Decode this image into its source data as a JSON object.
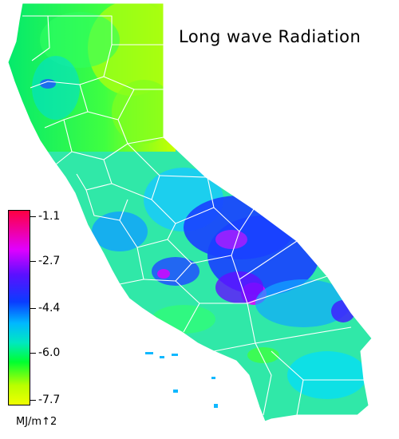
{
  "map": {
    "title": "Long wave Radiation",
    "region": "California",
    "unit": "MJ/m↑2",
    "colors": {
      "state_fill": "#2ee0b0",
      "county_border": "#ffffff",
      "high_stops": [
        "#ff0040",
        "#e000ff",
        "#5a10ff",
        "#0a3cff",
        "#00b8ff",
        "#00e8c0",
        "#00ff30",
        "#b8ff00",
        "#f0ff00"
      ]
    },
    "legend": {
      "ticks": [
        {
          "label": "-1.1",
          "value": -1.1
        },
        {
          "label": "-2.7",
          "value": -2.7
        },
        {
          "label": "-4.4",
          "value": -4.4
        },
        {
          "label": "-6.0",
          "value": -6.0
        },
        {
          "label": "-7.7",
          "value": -7.7
        }
      ],
      "range": [
        -7.7,
        -1.1
      ]
    }
  }
}
